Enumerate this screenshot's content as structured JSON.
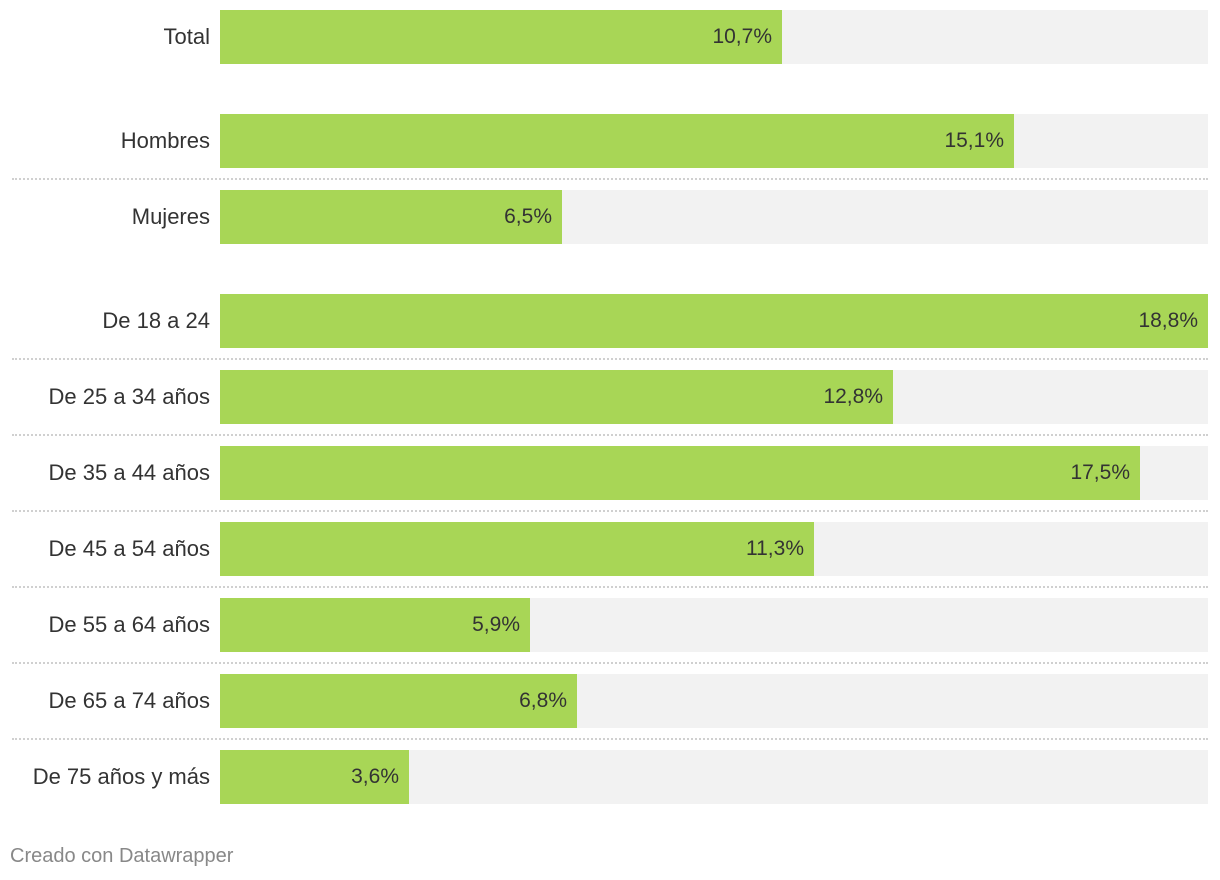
{
  "chart_data": {
    "type": "bar",
    "orientation": "horizontal",
    "title": "",
    "xlabel": "",
    "ylabel": "",
    "xlim": [
      0,
      18.8
    ],
    "grid": false,
    "bar_color": "#a8d656",
    "track_color": "#f2f2f2",
    "groups": [
      {
        "rows": [
          {
            "label": "Total",
            "value": 10.7,
            "display": "10,7%"
          }
        ]
      },
      {
        "rows": [
          {
            "label": "Hombres",
            "value": 15.1,
            "display": "15,1%"
          },
          {
            "label": "Mujeres",
            "value": 6.5,
            "display": "6,5%"
          }
        ]
      },
      {
        "rows": [
          {
            "label": "De 18 a 24",
            "value": 18.8,
            "display": "18,8%"
          },
          {
            "label": "De 25 a 34 años",
            "value": 12.8,
            "display": "12,8%"
          },
          {
            "label": "De 35 a 44 años",
            "value": 17.5,
            "display": "17,5%"
          },
          {
            "label": "De 45 a 54 años",
            "value": 11.3,
            "display": "11,3%"
          },
          {
            "label": "De 55 a 64 años",
            "value": 5.9,
            "display": "5,9%"
          },
          {
            "label": "De 65 a 74 años",
            "value": 6.8,
            "display": "6,8%"
          },
          {
            "label": "De 75 años y más",
            "value": 3.6,
            "display": "3,6%"
          }
        ]
      }
    ]
  },
  "footer": {
    "credit": "Creado con Datawrapper"
  }
}
